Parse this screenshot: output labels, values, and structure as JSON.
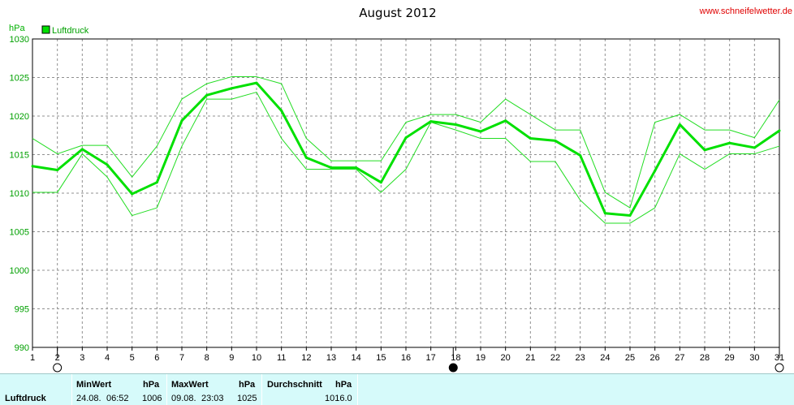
{
  "header": {
    "title": "August 2012",
    "website": "www.schneifelwetter.de",
    "unit": "hPa",
    "legend_label": "Luftdruck"
  },
  "colors": {
    "series": "#00e000",
    "bound": "#22dd22",
    "grid": "#909090",
    "stats_bg": "#d6fafa"
  },
  "chart_data": {
    "type": "line",
    "title": "August 2012",
    "ylabel": "hPa",
    "ylim": [
      990,
      1030
    ],
    "yticks": [
      990,
      995,
      1000,
      1005,
      1010,
      1015,
      1020,
      1025,
      1030
    ],
    "x": [
      1,
      2,
      3,
      4,
      5,
      6,
      7,
      8,
      9,
      10,
      11,
      12,
      13,
      14,
      15,
      16,
      17,
      18,
      19,
      20,
      21,
      22,
      23,
      24,
      25,
      26,
      27,
      28,
      29,
      30,
      31
    ],
    "grid": true,
    "legend": "top-left",
    "moon_phases": [
      {
        "day": 2,
        "phase": "full"
      },
      {
        "day": 17.9,
        "phase": "new"
      },
      {
        "day": 31,
        "phase": "full"
      }
    ],
    "series": [
      {
        "name": "Luftdruck",
        "role": "mean",
        "values": [
          1013.5,
          1013.0,
          1015.7,
          1013.7,
          1009.9,
          1011.4,
          1019.4,
          1022.7,
          1023.6,
          1024.3,
          1020.7,
          1014.6,
          1013.3,
          1013.3,
          1011.4,
          1017.2,
          1019.3,
          1018.9,
          1018.0,
          1019.4,
          1017.1,
          1016.8,
          1014.9,
          1007.4,
          1007.1,
          1012.9,
          1018.9,
          1015.6,
          1016.5,
          1015.9,
          1018.1
        ]
      },
      {
        "role": "max",
        "values": [
          1017.1,
          1015.1,
          1016.2,
          1016.2,
          1012.1,
          1016.1,
          1022.2,
          1024.2,
          1025.1,
          1025.1,
          1024.2,
          1017.1,
          1014.2,
          1014.2,
          1014.2,
          1019.2,
          1020.2,
          1020.2,
          1019.2,
          1022.2,
          1020.2,
          1018.2,
          1018.2,
          1010.1,
          1008.1,
          1019.2,
          1020.2,
          1018.2,
          1018.2,
          1017.2,
          1022.1
        ]
      },
      {
        "role": "min",
        "values": [
          1010.1,
          1010.1,
          1015.1,
          1012.1,
          1007.1,
          1008.1,
          1016.1,
          1022.2,
          1022.2,
          1023.1,
          1017.1,
          1013.1,
          1013.1,
          1013.1,
          1010.1,
          1013.1,
          1019.2,
          1018.2,
          1017.1,
          1017.1,
          1014.1,
          1014.1,
          1009.1,
          1006.1,
          1006.1,
          1008.1,
          1015.1,
          1013.1,
          1015.1,
          1015.1,
          1016.1
        ]
      }
    ]
  },
  "stats": {
    "row_label": "Luftdruck",
    "min": {
      "header": "MinWert",
      "unit_header": "hPa",
      "date": "24.08.",
      "time": "06:52",
      "value": "1006"
    },
    "max": {
      "header": "MaxWert",
      "unit_header": "hPa",
      "date": "09.08.",
      "time": "23:03",
      "value": "1025"
    },
    "avg": {
      "header": "Durchschnitt",
      "unit_header": "hPa",
      "value": "1016.0"
    }
  }
}
